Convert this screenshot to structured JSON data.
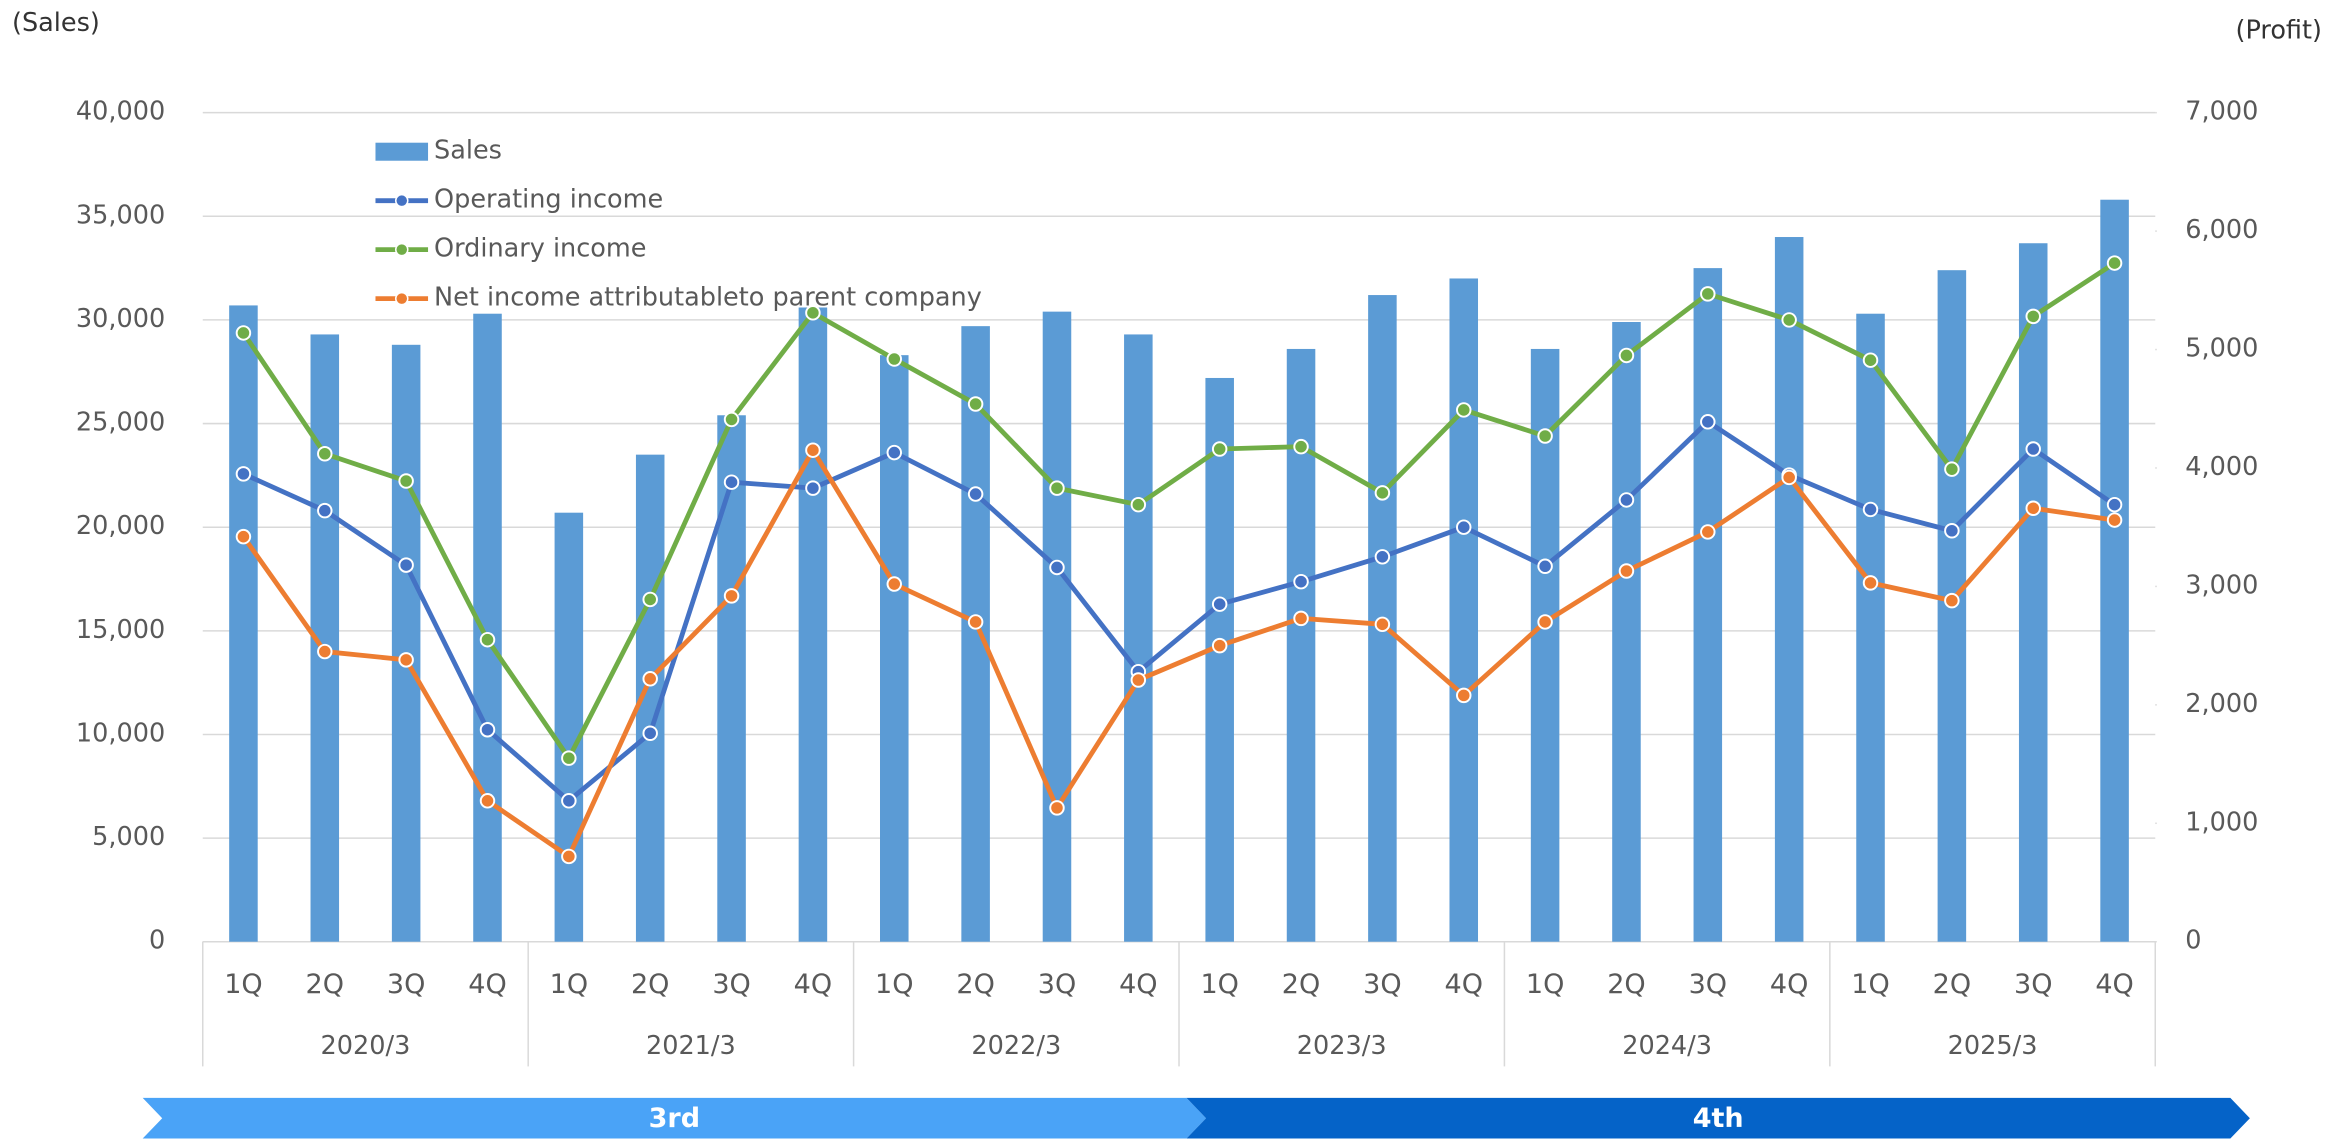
{
  "chart_data": {
    "type": "bar_line",
    "y_axis_label": "(Sales)",
    "y2_axis_label": "(Profit)",
    "categories": [
      "1Q",
      "2Q",
      "3Q",
      "4Q",
      "1Q",
      "2Q",
      "3Q",
      "4Q",
      "1Q",
      "2Q",
      "3Q",
      "4Q",
      "1Q",
      "2Q",
      "3Q",
      "4Q",
      "1Q",
      "2Q",
      "3Q",
      "4Q",
      "1Q",
      "2Q",
      "3Q",
      "4Q"
    ],
    "groups": [
      "2020/3",
      "2021/3",
      "2022/3",
      "2023/3",
      "2024/3",
      "2025/3"
    ],
    "phases": [
      {
        "label": "3rd",
        "color": "#4aa3f7"
      },
      {
        "label": "4th",
        "color": "#0563c8"
      }
    ],
    "series": [
      {
        "name": "Sales",
        "type": "bar",
        "color": "#5b9bd5",
        "values": [
          30700,
          29300,
          28800,
          30300,
          20700,
          23500,
          25400,
          30600,
          28300,
          29700,
          30400,
          29300,
          27200,
          28600,
          31200,
          32000,
          28600,
          29900,
          32500,
          34000,
          30300,
          32400,
          33700,
          35800
        ]
      },
      {
        "name": "Operating income",
        "type": "line",
        "axis": "y2",
        "color": "#4472c4",
        "values": [
          3950,
          3640,
          3180,
          1790,
          1190,
          1760,
          3880,
          3830,
          4130,
          3780,
          3160,
          2280,
          2850,
          3040,
          3250,
          3500,
          3170,
          3730,
          4390,
          3940,
          3650,
          3470,
          4160,
          3690
        ]
      },
      {
        "name": "Ordinary income",
        "type": "line",
        "axis": "y2",
        "color": "#70ad47",
        "values": [
          5140,
          4120,
          3890,
          2550,
          1550,
          2890,
          4410,
          5310,
          4920,
          4540,
          3830,
          3690,
          4160,
          4180,
          3790,
          4490,
          4270,
          4950,
          5470,
          5250,
          4910,
          3990,
          5280,
          5730
        ]
      },
      {
        "name": "Net income attributableto parent company",
        "type": "line",
        "axis": "y2",
        "color": "#ed7d31",
        "values": [
          3420,
          2450,
          2380,
          1190,
          720,
          2220,
          2920,
          4150,
          3020,
          2700,
          1130,
          2210,
          2500,
          2730,
          2680,
          2080,
          2700,
          3130,
          3460,
          3920,
          3030,
          2880,
          3660,
          3560
        ]
      }
    ],
    "ylim": [
      0,
      40000
    ],
    "yticks": [
      0,
      {
        "value": 5000,
        "label": "5,000"
      },
      {
        "value": 10000,
        "label": "10,000"
      },
      {
        "value": 15000,
        "label": "15,000"
      },
      {
        "value": 20000,
        "label": "20,000"
      },
      {
        "value": 25000,
        "label": "25,000"
      },
      {
        "value": 30000,
        "label": "30,000"
      },
      {
        "value": 35000,
        "label": "35,000"
      },
      {
        "value": 40000,
        "label": "40,000"
      }
    ],
    "y2lim": [
      0,
      7000
    ],
    "y2ticks": [
      0,
      {
        "value": 1000,
        "label": "1,000"
      },
      {
        "value": 2000,
        "label": "2,000"
      },
      {
        "value": 3000,
        "label": "3,000"
      },
      {
        "value": 4000,
        "label": "4,000"
      },
      {
        "value": 5000,
        "label": "5,000"
      },
      {
        "value": 6000,
        "label": "6,000"
      },
      {
        "value": 7000,
        "label": "7,000"
      }
    ],
    "grid": true
  }
}
